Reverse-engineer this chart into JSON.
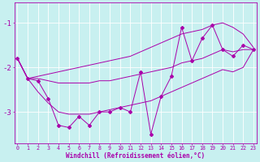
{
  "xlabel": "Windchill (Refroidissement éolien,°C)",
  "bg_color": "#c8f0f0",
  "line_color": "#aa00aa",
  "x_data": [
    0,
    1,
    2,
    3,
    4,
    5,
    6,
    7,
    8,
    9,
    10,
    11,
    12,
    13,
    14,
    15,
    16,
    17,
    18,
    19,
    20,
    21,
    22,
    23
  ],
  "main_data": [
    -1.8,
    -2.25,
    -2.3,
    -2.7,
    -3.3,
    -3.35,
    -3.1,
    -3.3,
    -3.0,
    -3.0,
    -2.9,
    -3.0,
    -2.1,
    -3.5,
    -2.65,
    -2.2,
    -1.1,
    -1.85,
    -1.35,
    -1.05,
    -1.6,
    -1.75,
    -1.5,
    -1.6
  ],
  "upper_line": [
    -1.8,
    -2.25,
    -2.2,
    -2.15,
    -2.1,
    -2.05,
    -2.0,
    -1.95,
    -1.9,
    -1.85,
    -1.8,
    -1.75,
    -1.65,
    -1.55,
    -1.45,
    -1.35,
    -1.25,
    -1.2,
    -1.15,
    -1.05,
    -1.0,
    -1.1,
    -1.25,
    -1.55
  ],
  "mid_line": [
    -1.8,
    -2.25,
    -2.25,
    -2.3,
    -2.35,
    -2.35,
    -2.35,
    -2.35,
    -2.3,
    -2.3,
    -2.25,
    -2.2,
    -2.15,
    -2.1,
    -2.05,
    -2.0,
    -1.9,
    -1.85,
    -1.8,
    -1.7,
    -1.6,
    -1.65,
    -1.6,
    -1.6
  ],
  "lower_line": [
    -1.8,
    -2.25,
    -2.55,
    -2.8,
    -3.0,
    -3.05,
    -3.05,
    -3.05,
    -3.0,
    -2.95,
    -2.9,
    -2.85,
    -2.8,
    -2.75,
    -2.65,
    -2.55,
    -2.45,
    -2.35,
    -2.25,
    -2.15,
    -2.05,
    -2.1,
    -2.0,
    -1.6
  ],
  "yticks": [
    -1,
    -2,
    -3
  ],
  "xticks": [
    0,
    1,
    2,
    3,
    4,
    5,
    6,
    7,
    8,
    9,
    10,
    11,
    12,
    13,
    14,
    15,
    16,
    17,
    18,
    19,
    20,
    21,
    22,
    23
  ],
  "ylim": [
    -3.7,
    -0.55
  ],
  "xlim": [
    -0.3,
    23.3
  ]
}
